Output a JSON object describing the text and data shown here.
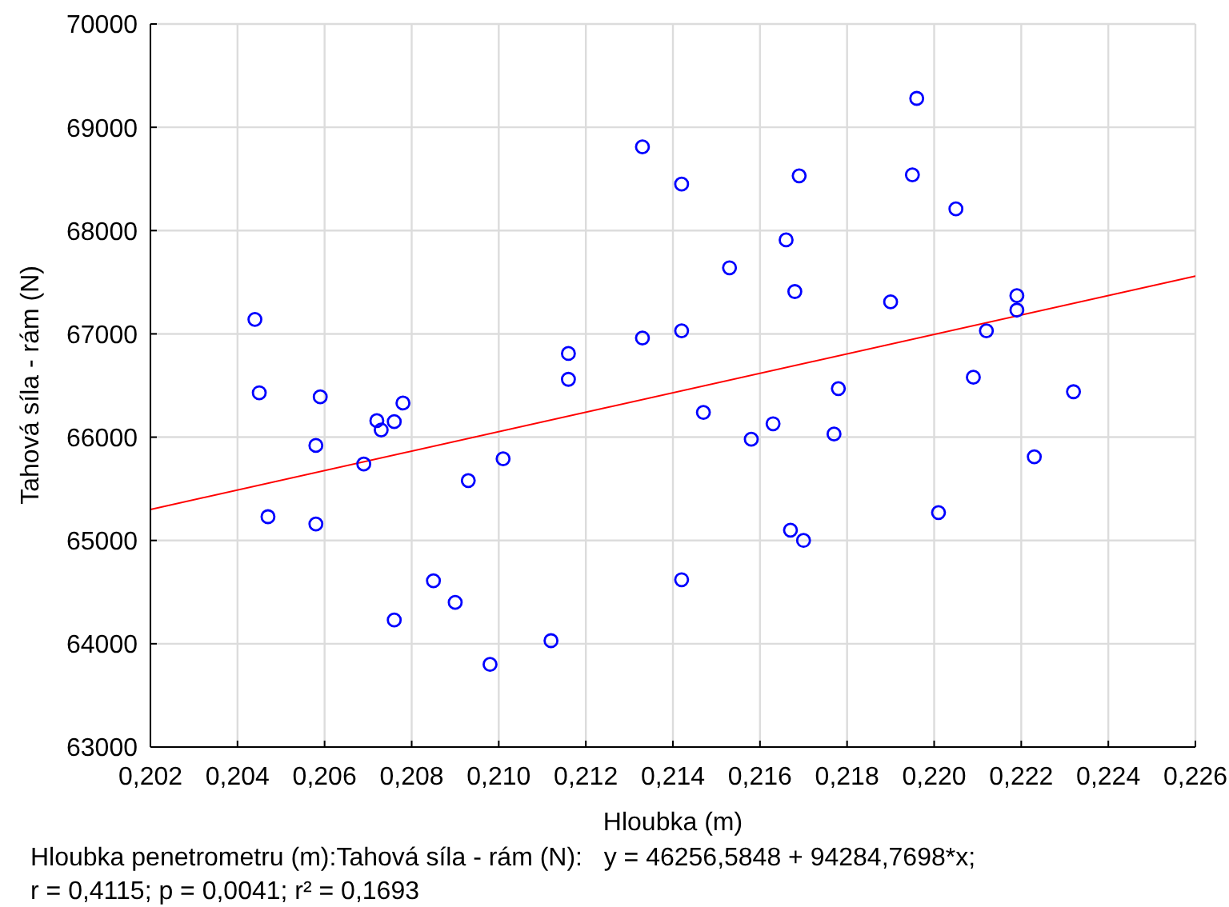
{
  "chart_data": {
    "type": "scatter",
    "xlabel": "Hloubka (m)",
    "ylabel": "Tahová síla - rám (N)",
    "xlim": [
      0.202,
      0.226
    ],
    "ylim": [
      63000,
      70000
    ],
    "xticks": [
      {
        "value": 0.202,
        "label": "0,202"
      },
      {
        "value": 0.204,
        "label": "0,204"
      },
      {
        "value": 0.206,
        "label": "0,206"
      },
      {
        "value": 0.208,
        "label": "0,208"
      },
      {
        "value": 0.21,
        "label": "0,210"
      },
      {
        "value": 0.212,
        "label": "0,212"
      },
      {
        "value": 0.214,
        "label": "0,214"
      },
      {
        "value": 0.216,
        "label": "0,216"
      },
      {
        "value": 0.218,
        "label": "0,218"
      },
      {
        "value": 0.22,
        "label": "0,220"
      },
      {
        "value": 0.222,
        "label": "0,222"
      },
      {
        "value": 0.224,
        "label": "0,224"
      },
      {
        "value": 0.226,
        "label": "0,226"
      }
    ],
    "yticks": [
      63000,
      64000,
      65000,
      66000,
      67000,
      68000,
      69000,
      70000
    ],
    "grid": true,
    "marker": "circle",
    "series": [
      {
        "color": "#0000ff",
        "x": [
          0.2044,
          0.2045,
          0.2059,
          0.2078,
          0.2072,
          0.2076,
          0.2073,
          0.2058,
          0.2069,
          0.2101,
          0.2093,
          0.2047,
          0.2058,
          0.2085,
          0.209,
          0.2076,
          0.2098,
          0.2133,
          0.2142,
          0.2169,
          0.2166,
          0.2153,
          0.2168,
          0.2142,
          0.2133,
          0.2116,
          0.2116,
          0.2178,
          0.2147,
          0.2163,
          0.2158,
          0.2177,
          0.2167,
          0.217,
          0.2142,
          0.2112,
          0.2196,
          0.2195,
          0.2205,
          0.219,
          0.2219,
          0.2219,
          0.2212,
          0.2209,
          0.2232,
          0.2223,
          0.2201
        ],
        "values": [
          67140,
          66430,
          66390,
          66330,
          66160,
          66150,
          66070,
          65920,
          65740,
          65790,
          65580,
          65230,
          65160,
          64610,
          64400,
          64230,
          63800,
          68810,
          68450,
          68530,
          67910,
          67640,
          67410,
          67030,
          66960,
          66810,
          66560,
          66470,
          66240,
          66130,
          65980,
          66030,
          65100,
          65000,
          64620,
          64030,
          69280,
          68540,
          68210,
          67310,
          67370,
          67230,
          67030,
          66580,
          66440,
          65810,
          65270
        ]
      },
      {
        "type": "line",
        "color": "#ff0000",
        "marker": "none",
        "x": [
          0.202,
          0.226
        ],
        "values": [
          65300,
          67560
        ]
      }
    ],
    "annotations": [
      "Hloubka penetrometru (m):Tahová síla - rám (N):   y = 46256,5848 + 94284,7698*x;",
      "r = 0,4115; p = 0,0041; r² = 0,1693"
    ]
  }
}
